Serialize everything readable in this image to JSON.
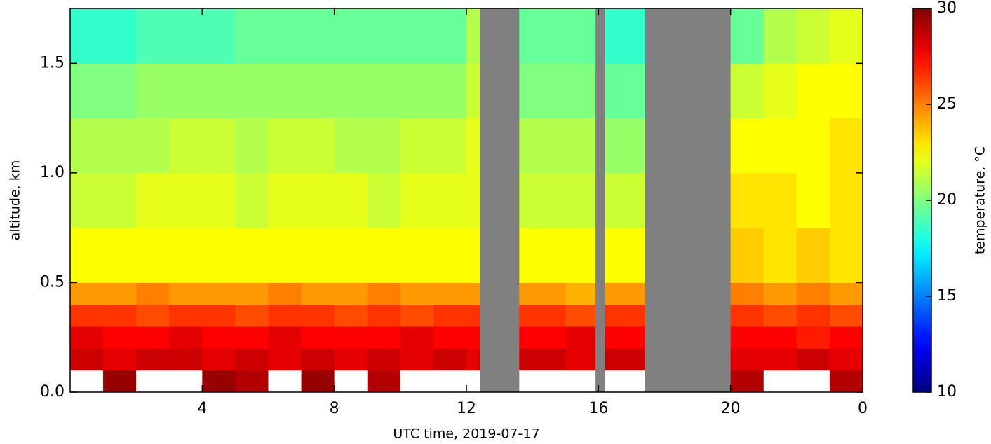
{
  "chart_data": {
    "type": "heatmap",
    "xlabel": "UTC time,  2019-07-17",
    "ylabel": "altitude, km",
    "colorbar_label": "temperature, °C",
    "colormap": "jet",
    "nan_color": "#808080",
    "over_color": "#ffffff",
    "x_edges": [
      0,
      1,
      2,
      3,
      4,
      5,
      6,
      7,
      8,
      9,
      10,
      11,
      12,
      12.4,
      13.6,
      15,
      15.9,
      16.2,
      17.4,
      20,
      21,
      22,
      23,
      24
    ],
    "y_edges": [
      0,
      0.1,
      0.2,
      0.3,
      0.4,
      0.5,
      0.75,
      1.0,
      1.25,
      1.5,
      1.75
    ],
    "values": [
      [
        30.5,
        29.5,
        30.5,
        30.5,
        29.5,
        29,
        30.5,
        29.5,
        30.5,
        29,
        30.5,
        30.5,
        30.5,
        null,
        30.5,
        30.5,
        null,
        30.5,
        null,
        29,
        30.5,
        30.5,
        29
      ],
      [
        28.5,
        28,
        28.5,
        28.5,
        28,
        28.5,
        28,
        28.5,
        28,
        28.5,
        28,
        28.5,
        28,
        null,
        28.5,
        28,
        null,
        28.5,
        null,
        28,
        28,
        28.5,
        28
      ],
      [
        28,
        27.5,
        27.5,
        28,
        27.5,
        27.5,
        28,
        27.5,
        27.5,
        27.5,
        28,
        27.5,
        27.5,
        null,
        27.5,
        28,
        null,
        27.5,
        null,
        27.5,
        27.5,
        27,
        27.5
      ],
      [
        26.5,
        26.5,
        26,
        26.5,
        26.5,
        26,
        26.5,
        26.5,
        26,
        26.5,
        26,
        26.5,
        26.5,
        null,
        26.5,
        26,
        null,
        26.5,
        null,
        26.5,
        26,
        26.5,
        26
      ],
      [
        24.5,
        24.5,
        25,
        24.5,
        24.5,
        24.5,
        25,
        24.5,
        24.5,
        25,
        24.5,
        24.5,
        24.5,
        null,
        24.5,
        24,
        null,
        24.5,
        null,
        25,
        24.5,
        25,
        24.5
      ],
      [
        22.5,
        22.5,
        22.5,
        22.5,
        22.5,
        22.5,
        22.5,
        22.5,
        22.5,
        22.5,
        22.5,
        22.5,
        22.5,
        null,
        22.5,
        22.5,
        null,
        22.5,
        null,
        23.5,
        23,
        23.5,
        23
      ],
      [
        21.5,
        21.5,
        22,
        22,
        22,
        21.5,
        22,
        22,
        22,
        21.5,
        22,
        22,
        22,
        null,
        21.5,
        21.5,
        null,
        21.5,
        null,
        23,
        23,
        22.5,
        23
      ],
      [
        21,
        21,
        21,
        21.5,
        21.5,
        21,
        21.5,
        21.5,
        21,
        21,
        21.5,
        21.5,
        22,
        null,
        21,
        21,
        null,
        20.5,
        null,
        22.5,
        22.5,
        22.5,
        23
      ],
      [
        20,
        20,
        20.5,
        20.5,
        20.5,
        20.5,
        20.5,
        20.5,
        20.5,
        20.5,
        20.5,
        20.5,
        21.5,
        null,
        20,
        20,
        null,
        19.5,
        null,
        21.5,
        22,
        22.5,
        22.5
      ],
      [
        18.5,
        18.5,
        19,
        19,
        19,
        19.5,
        19.5,
        19.5,
        19.5,
        19.5,
        19.5,
        19.5,
        21,
        null,
        19.5,
        19.5,
        null,
        18.5,
        null,
        19.5,
        21,
        21.5,
        22
      ]
    ],
    "xlim": [
      0,
      24
    ],
    "xticks": [
      4,
      8,
      12,
      16,
      20,
      {
        "value": 24,
        "label": "0"
      }
    ],
    "ylim": [
      0,
      1.75
    ],
    "yticks": [
      {
        "value": 0,
        "label": "0.0"
      },
      0.5,
      {
        "value": 1,
        "label": "1.0"
      },
      1.5
    ],
    "zlim": [
      10,
      30
    ],
    "zticks": [
      10,
      15,
      20,
      25,
      30
    ]
  }
}
